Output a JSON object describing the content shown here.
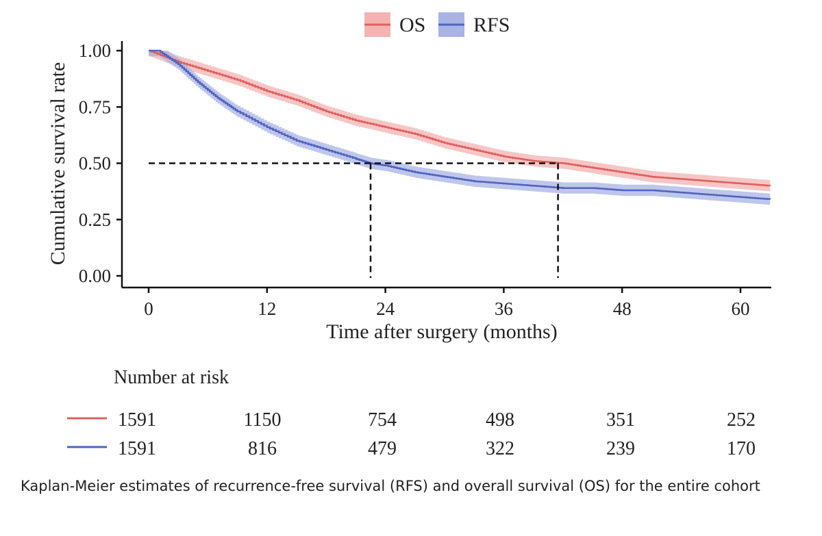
{
  "chart_data": {
    "type": "line",
    "subtype": "kaplan-meier",
    "ylabel": "Cumulative survival rate",
    "xlabel": "Time after surgery (months)",
    "xlim": [
      0,
      63
    ],
    "ylim": [
      0,
      1
    ],
    "x_ticks": [
      0,
      12,
      24,
      36,
      48,
      60
    ],
    "x_tick_labels": [
      "0",
      "12",
      "24",
      "36",
      "48",
      "60"
    ],
    "y_ticks": [
      0,
      0.25,
      0.5,
      0.75,
      1
    ],
    "y_tick_labels": [
      "0.00",
      "0.25",
      "0.50",
      "0.75",
      "1.00"
    ],
    "legend": {
      "position": "top",
      "entries": [
        {
          "name": "OS",
          "color": "#e0605f"
        },
        {
          "name": "RFS",
          "color": "#5065c0"
        }
      ]
    },
    "series": [
      {
        "name": "OS",
        "color": "#e0605f",
        "band_color": "#f2b3b2",
        "x": [
          0,
          3,
          6,
          9,
          12,
          15,
          18,
          21,
          24,
          27,
          30,
          33,
          36,
          39,
          42,
          45,
          48,
          51,
          54,
          57,
          60,
          63
        ],
        "y": [
          1.0,
          0.95,
          0.91,
          0.87,
          0.82,
          0.78,
          0.73,
          0.69,
          0.66,
          0.63,
          0.59,
          0.56,
          0.53,
          0.51,
          0.5,
          0.48,
          0.46,
          0.44,
          0.43,
          0.42,
          0.41,
          0.4
        ],
        "ci_width": 0.025,
        "median": 41.5
      },
      {
        "name": "RFS",
        "color": "#5065c0",
        "band_color": "#a9b3e4",
        "x": [
          0,
          1,
          3,
          5,
          7,
          9,
          12,
          15,
          18,
          21,
          22.5,
          24,
          27,
          30,
          33,
          36,
          39,
          42,
          45,
          48,
          51,
          54,
          57,
          60,
          63
        ],
        "y": [
          1.0,
          1.0,
          0.94,
          0.86,
          0.79,
          0.73,
          0.66,
          0.6,
          0.56,
          0.52,
          0.5,
          0.49,
          0.46,
          0.44,
          0.42,
          0.41,
          0.4,
          0.39,
          0.39,
          0.38,
          0.38,
          0.37,
          0.36,
          0.35,
          0.34
        ],
        "ci_width": 0.025,
        "median": 22.5
      }
    ],
    "reference_lines": {
      "y": 0.5,
      "x_medians": [
        22.5,
        41.5
      ]
    },
    "risk_table": {
      "title": "Number at risk",
      "times": [
        0,
        12,
        24,
        36,
        48,
        60
      ],
      "rows": [
        {
          "name": "OS",
          "color": "#e0605f",
          "values": [
            "1591",
            "1150",
            "754",
            "498",
            "351",
            "252"
          ]
        },
        {
          "name": "RFS",
          "color": "#5065c0",
          "values": [
            "1591",
            "816",
            "479",
            "322",
            "239",
            "170"
          ]
        }
      ]
    }
  },
  "caption": "Kaplan-Meier estimates of recurrence-free survival (RFS) and overall survival (OS) for the entire cohort"
}
